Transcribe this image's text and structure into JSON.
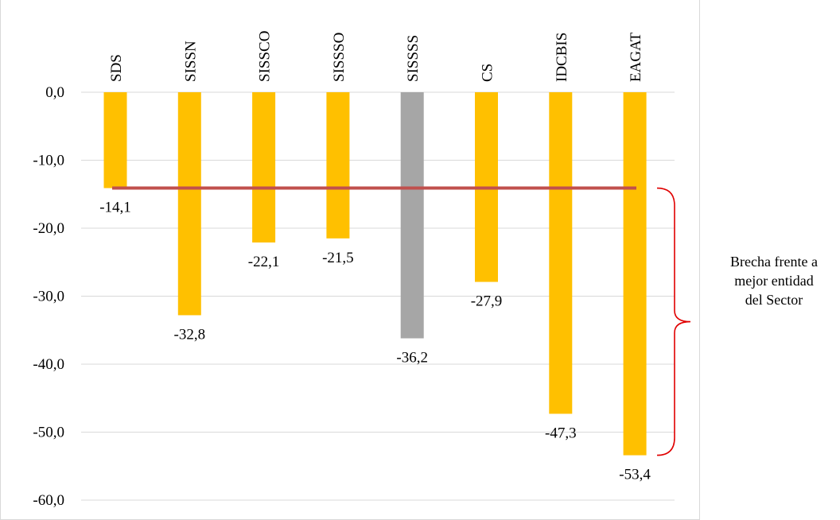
{
  "chart_data": {
    "type": "bar",
    "categories": [
      "SDS",
      "SISSN",
      "SISSCO",
      "SISSSO",
      "SISSSS",
      "CS",
      "IDCBIS",
      "EAGAT"
    ],
    "values": [
      -14.1,
      -32.8,
      -22.1,
      -21.5,
      -36.2,
      -27.9,
      -47.3,
      -53.4
    ],
    "data_labels": [
      "-14,1",
      "-32,8",
      "-22,1",
      "-21,5",
      "-36,2",
      "-27,9",
      "-47,3",
      "-53,4"
    ],
    "ylim": [
      -60,
      0
    ],
    "y_ticks": [
      0,
      -10,
      -20,
      -30,
      -40,
      -50,
      -60
    ],
    "y_tick_labels": [
      "0,0",
      "-10,0",
      "-20,0",
      "-30,0",
      "-40,0",
      "-50,0",
      "-60,0"
    ],
    "grid": true,
    "highlight_category": "SISSSS",
    "reference_line": {
      "y": -14.1
    },
    "colors": {
      "bar": "#FFC000",
      "highlight_bar": "#A6A6A6",
      "reference_line": "#C0504D",
      "bracket": "#E00000",
      "grid": "#D9D9D9",
      "text": "#000000"
    },
    "annotation": {
      "lines": [
        "Brecha frente a",
        "mejor entidad",
        "del Sector"
      ],
      "spans_from": -14.1,
      "spans_to": -53.4
    }
  }
}
